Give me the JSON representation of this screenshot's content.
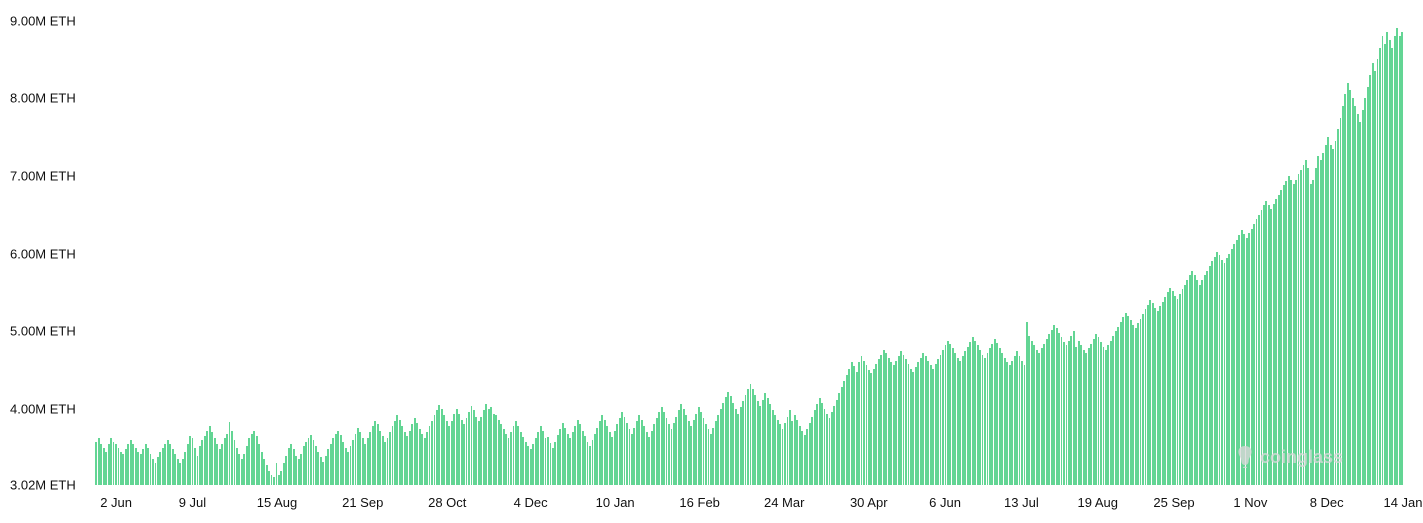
{
  "chart": {
    "type": "bar",
    "background_color": "#ffffff",
    "bar_color": "#63d594",
    "text_color": "#111111",
    "watermark_color": "#d8d8d8",
    "label_fontsize": 13,
    "y_axis": {
      "min": 3.02,
      "max": 9.2,
      "unit": "M ETH",
      "ticks": [
        {
          "value": 3.02,
          "label": "3.02M ETH"
        },
        {
          "value": 4.0,
          "label": "4.00M ETH"
        },
        {
          "value": 5.0,
          "label": "5.00M ETH"
        },
        {
          "value": 6.0,
          "label": "6.00M ETH"
        },
        {
          "value": 7.0,
          "label": "7.00M ETH"
        },
        {
          "value": 8.0,
          "label": "8.00M ETH"
        },
        {
          "value": 9.0,
          "label": "9.00M ETH"
        }
      ]
    },
    "x_axis": {
      "ticks": [
        {
          "pos": 0.018,
          "label": "2 Jun"
        },
        {
          "pos": 0.083,
          "label": "9 Jul"
        },
        {
          "pos": 0.155,
          "label": "15 Aug"
        },
        {
          "pos": 0.228,
          "label": "21 Sep"
        },
        {
          "pos": 0.3,
          "label": "28 Oct"
        },
        {
          "pos": 0.371,
          "label": "4 Dec"
        },
        {
          "pos": 0.443,
          "label": "10 Jan"
        },
        {
          "pos": 0.515,
          "label": "16 Feb"
        },
        {
          "pos": 0.587,
          "label": "24 Mar"
        },
        {
          "pos": 0.659,
          "label": "30 Apr"
        },
        {
          "pos": 0.724,
          "label": "6 Jun"
        },
        {
          "pos": 0.789,
          "label": "13 Jul"
        },
        {
          "pos": 0.854,
          "label": "19 Aug"
        },
        {
          "pos": 0.919,
          "label": "25 Sep"
        },
        {
          "pos": 0.984,
          "label": "1 Nov"
        },
        {
          "pos": 1.049,
          "label": "8 Dec"
        },
        {
          "pos": 1.114,
          "label": "14 Jan"
        }
      ],
      "visible_ticks_count": 17
    },
    "watermark_text": "coinglass",
    "values": [
      3.58,
      3.62,
      3.55,
      3.5,
      3.45,
      3.55,
      3.62,
      3.58,
      3.55,
      3.5,
      3.45,
      3.42,
      3.48,
      3.55,
      3.6,
      3.55,
      3.5,
      3.45,
      3.42,
      3.48,
      3.55,
      3.5,
      3.42,
      3.35,
      3.3,
      3.38,
      3.45,
      3.5,
      3.55,
      3.6,
      3.55,
      3.48,
      3.42,
      3.35,
      3.3,
      3.35,
      3.45,
      3.55,
      3.65,
      3.62,
      3.5,
      3.4,
      3.52,
      3.6,
      3.65,
      3.72,
      3.78,
      3.7,
      3.62,
      3.55,
      3.48,
      3.55,
      3.62,
      3.68,
      3.83,
      3.72,
      3.6,
      3.5,
      3.42,
      3.35,
      3.42,
      3.52,
      3.62,
      3.68,
      3.72,
      3.65,
      3.55,
      3.45,
      3.35,
      3.28,
      3.2,
      3.15,
      3.12,
      3.3,
      3.15,
      3.2,
      3.3,
      3.4,
      3.5,
      3.55,
      3.48,
      3.4,
      3.35,
      3.42,
      3.52,
      3.58,
      3.62,
      3.66,
      3.6,
      3.52,
      3.45,
      3.38,
      3.32,
      3.4,
      3.48,
      3.55,
      3.62,
      3.68,
      3.72,
      3.66,
      3.58,
      3.5,
      3.45,
      3.52,
      3.6,
      3.68,
      3.75,
      3.7,
      3.62,
      3.55,
      3.62,
      3.7,
      3.78,
      3.85,
      3.8,
      3.72,
      3.65,
      3.58,
      3.62,
      3.7,
      3.78,
      3.85,
      3.92,
      3.86,
      3.78,
      3.7,
      3.65,
      3.72,
      3.8,
      3.88,
      3.82,
      3.74,
      3.68,
      3.62,
      3.7,
      3.78,
      3.85,
      3.92,
      3.98,
      4.05,
      4.0,
      3.92,
      3.84,
      3.78,
      3.85,
      3.93,
      4.0,
      3.94,
      3.86,
      3.8,
      3.88,
      3.96,
      4.04,
      3.98,
      3.9,
      3.84,
      3.9,
      3.98,
      4.06,
      4.0,
      4.02,
      3.94,
      3.92,
      3.86,
      3.8,
      3.74,
      3.68,
      3.62,
      3.7,
      3.78,
      3.84,
      3.78,
      3.7,
      3.64,
      3.58,
      3.52,
      3.48,
      3.55,
      3.62,
      3.7,
      3.78,
      3.72,
      3.62,
      3.64,
      3.56,
      3.5,
      3.58,
      3.66,
      3.74,
      3.82,
      3.76,
      3.68,
      3.62,
      3.7,
      3.78,
      3.86,
      3.8,
      3.72,
      3.65,
      3.58,
      3.52,
      3.6,
      3.68,
      3.76,
      3.84,
      3.92,
      3.86,
      3.78,
      3.7,
      3.64,
      3.72,
      3.8,
      3.88,
      3.96,
      3.9,
      3.82,
      3.74,
      3.68,
      3.76,
      3.84,
      3.92,
      3.86,
      3.78,
      3.7,
      3.64,
      3.72,
      3.8,
      3.88,
      3.96,
      4.02,
      3.96,
      3.88,
      3.8,
      3.74,
      3.82,
      3.9,
      3.98,
      4.06,
      4.0,
      3.92,
      3.84,
      3.78,
      3.86,
      3.94,
      4.02,
      3.96,
      3.88,
      3.8,
      3.74,
      3.68,
      3.76,
      3.84,
      3.92,
      4.0,
      4.08,
      4.15,
      4.22,
      4.16,
      4.08,
      4.0,
      3.94,
      4.02,
      4.1,
      4.18,
      4.25,
      4.32,
      4.26,
      4.18,
      4.1,
      4.04,
      4.12,
      4.2,
      4.14,
      4.06,
      3.98,
      3.92,
      3.86,
      3.8,
      3.74,
      3.82,
      3.9,
      3.98,
      3.85,
      3.92,
      3.86,
      3.78,
      3.72,
      3.66,
      3.74,
      3.82,
      3.9,
      3.98,
      4.06,
      4.14,
      4.08,
      4.0,
      3.94,
      3.88,
      3.96,
      4.04,
      4.12,
      4.2,
      4.28,
      4.36,
      4.44,
      4.52,
      4.6,
      4.55,
      4.48,
      4.6,
      4.68,
      4.62,
      4.56,
      4.5,
      4.46,
      4.52,
      4.58,
      4.64,
      4.7,
      4.76,
      4.72,
      4.66,
      4.6,
      4.56,
      4.62,
      4.68,
      4.74,
      4.7,
      4.64,
      4.58,
      4.52,
      4.48,
      4.54,
      4.6,
      4.66,
      4.72,
      4.68,
      4.62,
      4.56,
      4.52,
      4.58,
      4.64,
      4.7,
      4.76,
      4.82,
      4.88,
      4.84,
      4.78,
      4.72,
      4.66,
      4.62,
      4.68,
      4.74,
      4.8,
      4.86,
      4.92,
      4.88,
      4.82,
      4.76,
      4.7,
      4.66,
      4.72,
      4.78,
      4.84,
      4.9,
      4.85,
      4.78,
      4.72,
      4.66,
      4.6,
      4.56,
      4.62,
      4.68,
      4.74,
      4.68,
      4.62,
      4.56,
      5.12,
      4.94,
      4.88,
      4.82,
      4.76,
      4.72,
      4.78,
      4.84,
      4.9,
      4.96,
      5.02,
      5.08,
      5.04,
      4.98,
      4.92,
      4.86,
      4.82,
      4.88,
      4.94,
      5.0,
      4.8,
      4.88,
      4.82,
      4.76,
      4.72,
      4.78,
      4.84,
      4.9,
      4.96,
      4.92,
      4.86,
      4.8,
      4.76,
      4.82,
      4.88,
      4.94,
      5.0,
      5.06,
      5.12,
      5.18,
      5.24,
      5.2,
      5.14,
      5.08,
      5.04,
      5.1,
      5.16,
      5.22,
      5.28,
      5.34,
      5.4,
      5.36,
      5.3,
      5.26,
      5.32,
      5.38,
      5.44,
      5.5,
      5.56,
      5.52,
      5.46,
      5.42,
      5.48,
      5.54,
      5.6,
      5.66,
      5.72,
      5.78,
      5.72,
      5.66,
      5.6,
      5.66,
      5.72,
      5.78,
      5.84,
      5.9,
      5.96,
      6.02,
      5.98,
      5.92,
      5.88,
      5.94,
      6.0,
      6.06,
      6.12,
      6.18,
      6.24,
      6.3,
      6.25,
      6.2,
      6.26,
      6.32,
      6.38,
      6.44,
      6.5,
      6.56,
      6.62,
      6.68,
      6.62,
      6.58,
      6.64,
      6.7,
      6.76,
      6.82,
      6.88,
      6.94,
      7.0,
      6.95,
      6.9,
      6.95,
      7.02,
      7.08,
      7.14,
      7.2,
      7.1,
      6.9,
      6.95,
      7.1,
      7.25,
      7.2,
      7.3,
      7.4,
      7.5,
      7.4,
      7.35,
      7.45,
      7.6,
      7.75,
      7.9,
      8.05,
      8.2,
      8.1,
      8.0,
      7.9,
      7.8,
      7.7,
      7.85,
      8.0,
      8.15,
      8.3,
      8.45,
      8.35,
      8.5,
      8.65,
      8.8,
      8.7,
      8.85,
      8.75,
      8.65,
      8.8,
      8.9,
      8.8,
      8.85
    ]
  }
}
